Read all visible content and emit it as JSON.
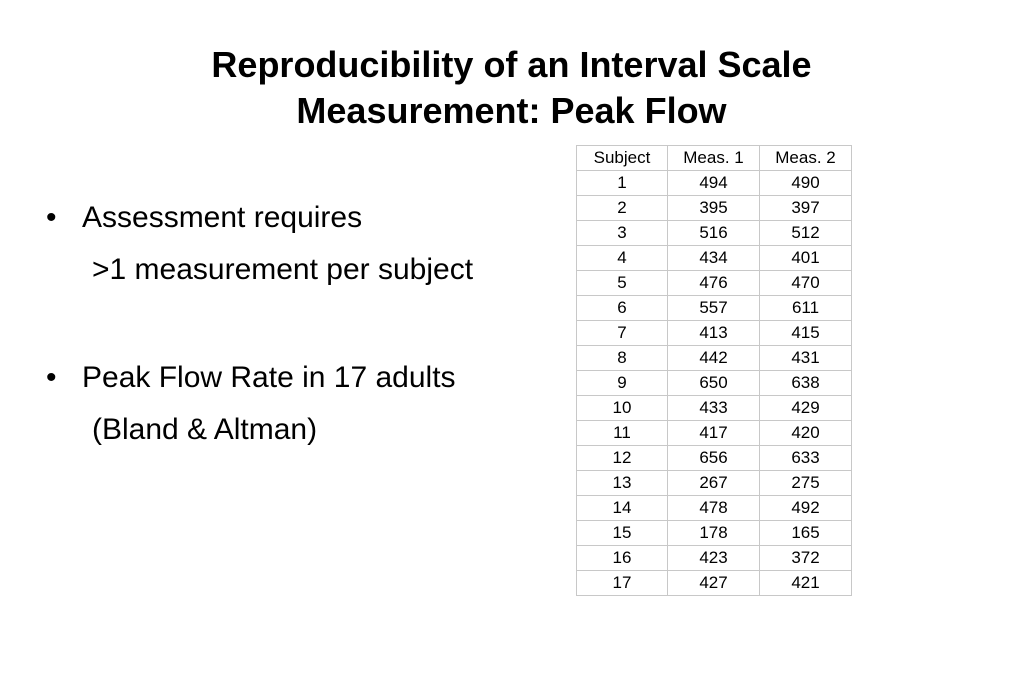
{
  "title": {
    "line1": "Reproducibility of an Interval Scale",
    "line2": "Measurement: Peak Flow"
  },
  "bullets": [
    {
      "text": "Assessment requires",
      "sub": ">1 measurement per subject"
    },
    {
      "text": "Peak Flow Rate in 17 adults",
      "sub": "(Bland & Altman)"
    }
  ],
  "table": {
    "headers": [
      "Subject",
      "Meas. 1",
      "Meas. 2"
    ],
    "rows": [
      [
        "1",
        "494",
        "490"
      ],
      [
        "2",
        "395",
        "397"
      ],
      [
        "3",
        "516",
        "512"
      ],
      [
        "4",
        "434",
        "401"
      ],
      [
        "5",
        "476",
        "470"
      ],
      [
        "6",
        "557",
        "611"
      ],
      [
        "7",
        "413",
        "415"
      ],
      [
        "8",
        "442",
        "431"
      ],
      [
        "9",
        "650",
        "638"
      ],
      [
        "10",
        "433",
        "429"
      ],
      [
        "11",
        "417",
        "420"
      ],
      [
        "12",
        "656",
        "633"
      ],
      [
        "13",
        "267",
        "275"
      ],
      [
        "14",
        "478",
        "492"
      ],
      [
        "15",
        "178",
        "165"
      ],
      [
        "16",
        "423",
        "372"
      ],
      [
        "17",
        "427",
        "421"
      ]
    ]
  }
}
